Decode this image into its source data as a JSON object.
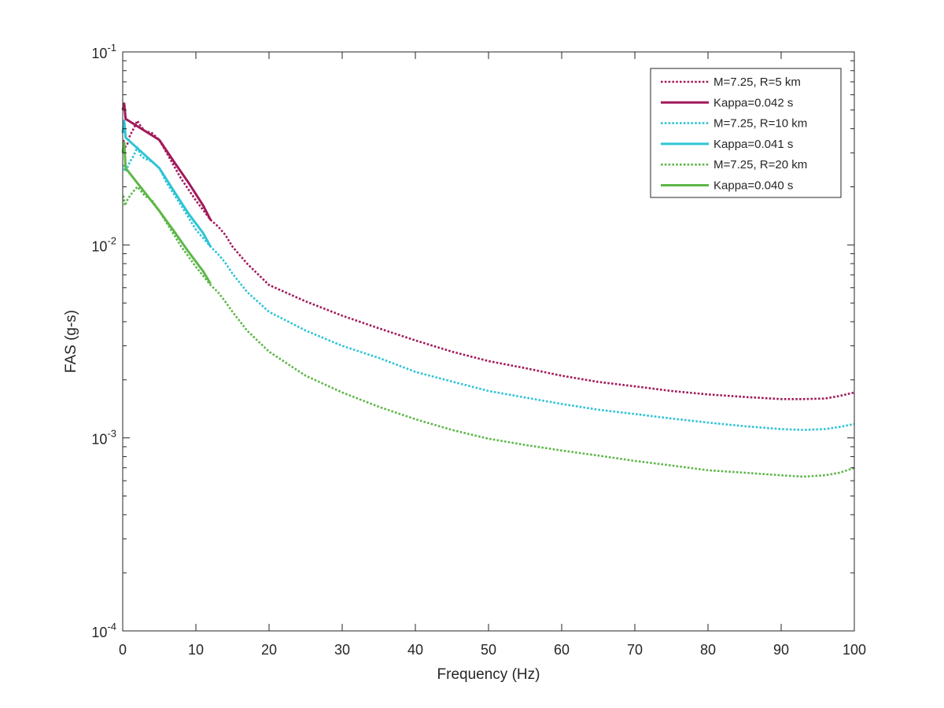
{
  "chart_data": {
    "type": "line",
    "title": "",
    "xlabel": "Frequency (Hz)",
    "ylabel": "FAS (g-s)",
    "xlim": [
      0,
      100
    ],
    "ylim": [
      0.0001,
      0.1
    ],
    "yscale": "log",
    "grid": false,
    "legend_position": "top-right",
    "x_ticks": [
      0,
      10,
      20,
      30,
      40,
      50,
      60,
      70,
      80,
      90,
      100
    ],
    "x_tick_labels": [
      "0",
      "10",
      "20",
      "30",
      "40",
      "50",
      "60",
      "70",
      "80",
      "90",
      "100"
    ],
    "y_ticks": [
      0.0001,
      0.001,
      0.01,
      0.1
    ],
    "y_tick_labels": [
      {
        "base": "10",
        "exp": "-4"
      },
      {
        "base": "10",
        "exp": "-3"
      },
      {
        "base": "10",
        "exp": "-2"
      },
      {
        "base": "10",
        "exp": "-1"
      }
    ],
    "series": [
      {
        "name": "M=7.25, R=5 km",
        "color": "#A2195A",
        "style": "dotted",
        "x": [
          0.1,
          0.3,
          0.6,
          1.0,
          1.5,
          2.0,
          2.5,
          3.0,
          4.0,
          5.0,
          6.0,
          8.0,
          10.0,
          12.0,
          13.0,
          14.0,
          15.0,
          17.0,
          20.0,
          25.0,
          30.0,
          35.0,
          40.0,
          45.0,
          50.0,
          55.0,
          60.0,
          65.0,
          70.0,
          75.0,
          80.0,
          85.0,
          90.0,
          93.0,
          96.0,
          98.0,
          100.0
        ],
        "y": [
          0.035,
          0.032,
          0.033,
          0.037,
          0.04,
          0.044,
          0.041,
          0.039,
          0.038,
          0.035,
          0.03,
          0.022,
          0.017,
          0.0135,
          0.0125,
          0.0113,
          0.0098,
          0.008,
          0.0062,
          0.0051,
          0.0043,
          0.0037,
          0.0032,
          0.0028,
          0.0025,
          0.0023,
          0.0021,
          0.00195,
          0.00185,
          0.00175,
          0.00168,
          0.00163,
          0.00159,
          0.00159,
          0.0016,
          0.00165,
          0.00172
        ]
      },
      {
        "name": "Kappa=0.042 s",
        "color": "#A2195A",
        "style": "solid",
        "x": [
          0.0,
          0.2,
          0.4,
          5.0,
          7.0,
          9.0,
          11.0,
          12.0
        ],
        "y": [
          0.05,
          0.054,
          0.045,
          0.035,
          0.027,
          0.021,
          0.016,
          0.0135
        ]
      },
      {
        "name": "M=7.25, R=10 km",
        "color": "#2EC4D6",
        "style": "dotted",
        "x": [
          0.1,
          0.3,
          0.6,
          1.0,
          1.5,
          2.0,
          2.5,
          3.0,
          4.0,
          5.0,
          6.0,
          8.0,
          10.0,
          12.0,
          13.0,
          14.0,
          15.0,
          17.0,
          20.0,
          25.0,
          30.0,
          35.0,
          40.0,
          45.0,
          50.0,
          55.0,
          60.0,
          65.0,
          70.0,
          75.0,
          80.0,
          85.0,
          90.0,
          93.0,
          96.0,
          98.0,
          100.0
        ],
        "y": [
          0.026,
          0.024,
          0.025,
          0.027,
          0.029,
          0.032,
          0.029,
          0.028,
          0.027,
          0.025,
          0.021,
          0.016,
          0.012,
          0.0098,
          0.009,
          0.0081,
          0.0071,
          0.0057,
          0.0045,
          0.0036,
          0.003,
          0.0026,
          0.0022,
          0.00196,
          0.00175,
          0.00162,
          0.0015,
          0.0014,
          0.00133,
          0.00126,
          0.0012,
          0.00115,
          0.00111,
          0.0011,
          0.00111,
          0.00114,
          0.00118
        ]
      },
      {
        "name": "Kappa=0.041 s",
        "color": "#2EC4D6",
        "style": "solid",
        "x": [
          0.0,
          0.2,
          0.4,
          5.0,
          7.0,
          9.0,
          11.0,
          12.0
        ],
        "y": [
          0.038,
          0.044,
          0.036,
          0.025,
          0.019,
          0.0145,
          0.0115,
          0.0098
        ]
      },
      {
        "name": "M=7.25, R=20 km",
        "color": "#5DB748",
        "style": "dotted",
        "x": [
          0.1,
          0.3,
          0.6,
          1.0,
          1.5,
          2.0,
          2.5,
          3.0,
          4.0,
          5.0,
          6.0,
          8.0,
          10.0,
          12.0,
          13.0,
          14.0,
          15.0,
          17.0,
          20.0,
          25.0,
          30.0,
          35.0,
          40.0,
          45.0,
          50.0,
          55.0,
          60.0,
          65.0,
          70.0,
          75.0,
          80.0,
          85.0,
          90.0,
          93.0,
          96.0,
          98.0,
          100.0
        ],
        "y": [
          0.018,
          0.016,
          0.017,
          0.018,
          0.019,
          0.02,
          0.019,
          0.018,
          0.017,
          0.015,
          0.013,
          0.0098,
          0.0077,
          0.0062,
          0.0057,
          0.0051,
          0.0045,
          0.0036,
          0.0028,
          0.0021,
          0.00172,
          0.00145,
          0.00125,
          0.0011,
          0.00099,
          0.00092,
          0.00086,
          0.00081,
          0.00076,
          0.00072,
          0.00068,
          0.00066,
          0.00064,
          0.00063,
          0.00064,
          0.00066,
          0.0007
        ]
      },
      {
        "name": "Kappa=0.040 s",
        "color": "#5DB748",
        "style": "solid",
        "x": [
          0.0,
          0.2,
          0.4,
          5.0,
          7.0,
          9.0,
          11.0,
          12.0
        ],
        "y": [
          0.03,
          0.034,
          0.025,
          0.015,
          0.0118,
          0.0092,
          0.0073,
          0.0063
        ]
      }
    ]
  }
}
